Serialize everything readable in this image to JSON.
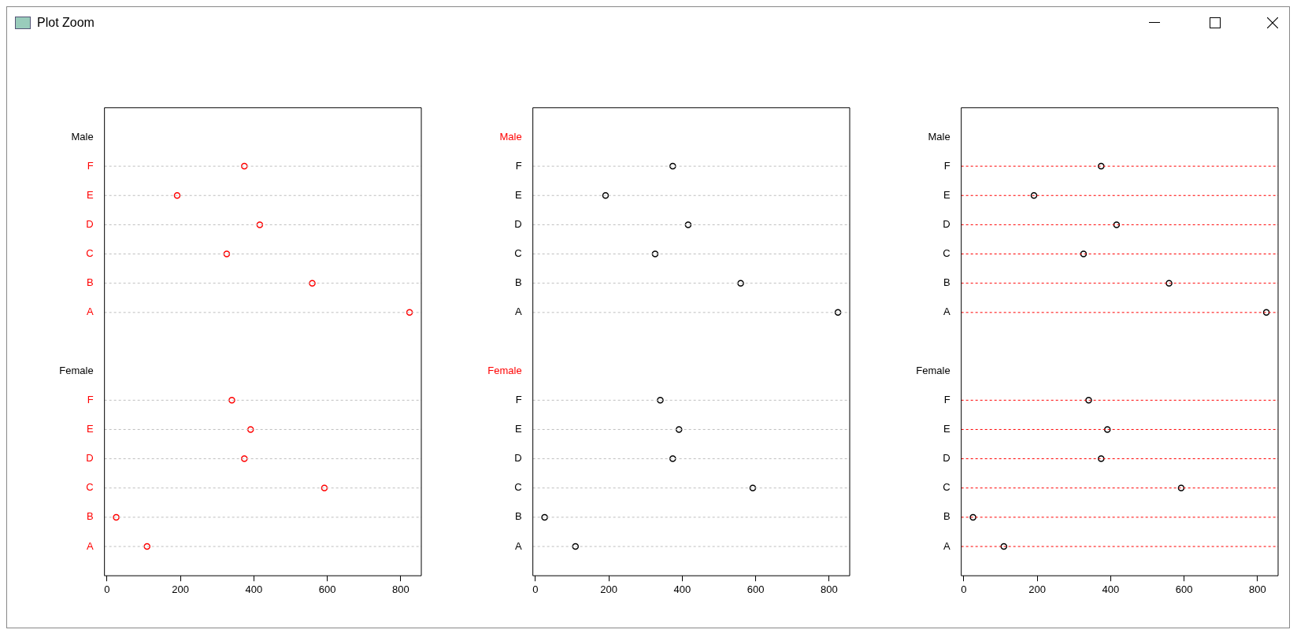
{
  "chart_data": [
    {
      "type": "scatter",
      "orientation": "horizontal",
      "annotations": [
        "Plot Zoom"
      ],
      "categories": [
        "Male",
        "F",
        "E",
        "D",
        "C",
        "B",
        "A",
        null,
        "Female",
        "F",
        "E",
        "D",
        "C",
        "B",
        "A"
      ],
      "values": [
        null,
        374,
        191,
        416,
        326,
        559,
        824,
        null,
        null,
        340,
        391,
        374,
        592,
        25,
        109
      ],
      "color": "#ff0000",
      "xlim": [
        -7,
        856
      ],
      "xticks": [
        0,
        200,
        400,
        600,
        800
      ],
      "grid": "y",
      "marker": "circle",
      "legend": false
    },
    {
      "type": "scatter",
      "orientation": "horizontal",
      "categories": [
        "Male",
        "F",
        "E",
        "D",
        "C",
        "B",
        "A",
        null,
        "Female",
        "F",
        "E",
        "D",
        "C",
        "B",
        "A"
      ],
      "values": [
        null,
        374,
        191,
        416,
        326,
        559,
        824,
        null,
        null,
        340,
        391,
        374,
        592,
        25,
        109
      ],
      "color": "#000000",
      "xlim": [
        -7,
        856
      ],
      "xticks": [
        0,
        200,
        400,
        600,
        800
      ],
      "grid": "y",
      "marker": "circle",
      "legend": false
    },
    {
      "type": "scatter",
      "orientation": "horizontal",
      "categories": [
        "Male",
        "F",
        "E",
        "D",
        "C",
        "B",
        "A",
        null,
        "Female",
        "F",
        "E",
        "D",
        "C",
        "B",
        "A"
      ],
      "values": [
        null,
        374,
        191,
        416,
        326,
        559,
        824,
        null,
        null,
        340,
        391,
        374,
        592,
        25,
        109
      ],
      "color": "#000000",
      "xlim": [
        -7,
        856
      ],
      "xticks": [
        0,
        200,
        400,
        600,
        800
      ],
      "grid": "y",
      "marker": "circle",
      "legend": false
    }
  ]
}
